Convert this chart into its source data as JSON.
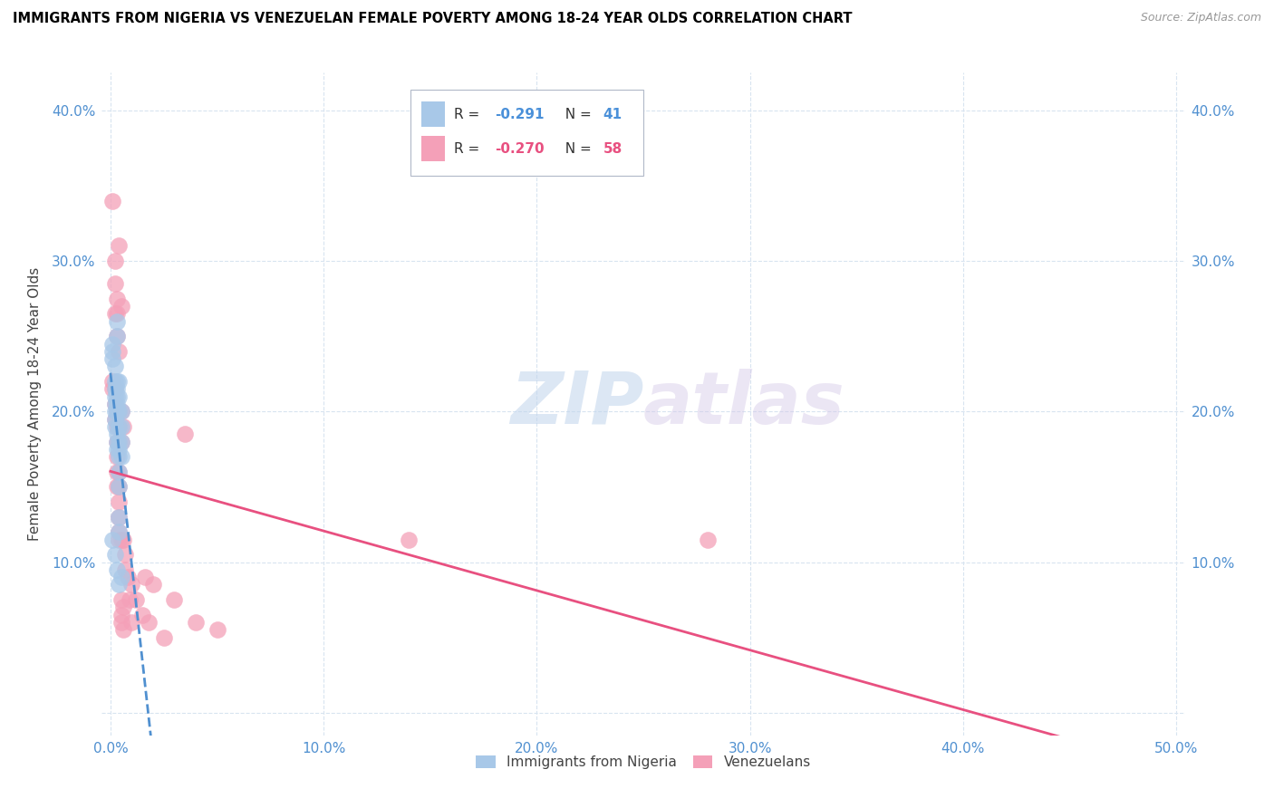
{
  "title": "IMMIGRANTS FROM NIGERIA VS VENEZUELAN FEMALE POVERTY AMONG 18-24 YEAR OLDS CORRELATION CHART",
  "source": "Source: ZipAtlas.com",
  "ylabel": "Female Poverty Among 18-24 Year Olds",
  "xlim": [
    0.0,
    0.5
  ],
  "ylim": [
    0.0,
    0.42
  ],
  "xticks": [
    0.0,
    0.1,
    0.2,
    0.3,
    0.4,
    0.5
  ],
  "xtick_labels": [
    "0.0%",
    "10.0%",
    "20.0%",
    "30.0%",
    "40.0%",
    "50.0%"
  ],
  "yticks": [
    0.0,
    0.1,
    0.2,
    0.3,
    0.4
  ],
  "ytick_labels": [
    "",
    "10.0%",
    "20.0%",
    "30.0%",
    "40.0%"
  ],
  "watermark": "ZIPatlas",
  "nigeria_color": "#a8c8e8",
  "venezuela_color": "#f4a0b8",
  "nigeria_line_color": "#5090d0",
  "venezuela_line_color": "#e85080",
  "nigeria_scatter": [
    [
      0.001,
      0.24
    ],
    [
      0.001,
      0.245
    ],
    [
      0.001,
      0.235
    ],
    [
      0.002,
      0.23
    ],
    [
      0.002,
      0.22
    ],
    [
      0.002,
      0.215
    ],
    [
      0.002,
      0.21
    ],
    [
      0.002,
      0.205
    ],
    [
      0.002,
      0.2
    ],
    [
      0.002,
      0.195
    ],
    [
      0.002,
      0.19
    ],
    [
      0.003,
      0.26
    ],
    [
      0.003,
      0.25
    ],
    [
      0.003,
      0.22
    ],
    [
      0.003,
      0.215
    ],
    [
      0.003,
      0.21
    ],
    [
      0.003,
      0.205
    ],
    [
      0.003,
      0.2
    ],
    [
      0.003,
      0.185
    ],
    [
      0.003,
      0.18
    ],
    [
      0.003,
      0.175
    ],
    [
      0.004,
      0.22
    ],
    [
      0.004,
      0.21
    ],
    [
      0.004,
      0.2
    ],
    [
      0.004,
      0.19
    ],
    [
      0.004,
      0.18
    ],
    [
      0.004,
      0.175
    ],
    [
      0.004,
      0.17
    ],
    [
      0.004,
      0.16
    ],
    [
      0.004,
      0.15
    ],
    [
      0.004,
      0.13
    ],
    [
      0.004,
      0.12
    ],
    [
      0.005,
      0.2
    ],
    [
      0.005,
      0.19
    ],
    [
      0.005,
      0.18
    ],
    [
      0.005,
      0.17
    ],
    [
      0.001,
      0.115
    ],
    [
      0.002,
      0.105
    ],
    [
      0.003,
      0.095
    ],
    [
      0.004,
      0.085
    ],
    [
      0.005,
      0.09
    ]
  ],
  "venezuela_scatter": [
    [
      0.001,
      0.22
    ],
    [
      0.001,
      0.215
    ],
    [
      0.001,
      0.34
    ],
    [
      0.002,
      0.3
    ],
    [
      0.002,
      0.285
    ],
    [
      0.002,
      0.265
    ],
    [
      0.002,
      0.215
    ],
    [
      0.002,
      0.205
    ],
    [
      0.002,
      0.195
    ],
    [
      0.003,
      0.275
    ],
    [
      0.003,
      0.265
    ],
    [
      0.003,
      0.25
    ],
    [
      0.003,
      0.2
    ],
    [
      0.003,
      0.19
    ],
    [
      0.003,
      0.18
    ],
    [
      0.003,
      0.17
    ],
    [
      0.003,
      0.16
    ],
    [
      0.003,
      0.15
    ],
    [
      0.004,
      0.31
    ],
    [
      0.004,
      0.24
    ],
    [
      0.004,
      0.2
    ],
    [
      0.004,
      0.19
    ],
    [
      0.004,
      0.18
    ],
    [
      0.004,
      0.16
    ],
    [
      0.004,
      0.15
    ],
    [
      0.004,
      0.14
    ],
    [
      0.004,
      0.13
    ],
    [
      0.004,
      0.12
    ],
    [
      0.004,
      0.115
    ],
    [
      0.005,
      0.27
    ],
    [
      0.005,
      0.2
    ],
    [
      0.005,
      0.18
    ],
    [
      0.005,
      0.115
    ],
    [
      0.005,
      0.075
    ],
    [
      0.005,
      0.065
    ],
    [
      0.005,
      0.06
    ],
    [
      0.006,
      0.19
    ],
    [
      0.006,
      0.115
    ],
    [
      0.006,
      0.07
    ],
    [
      0.006,
      0.055
    ],
    [
      0.007,
      0.105
    ],
    [
      0.007,
      0.095
    ],
    [
      0.008,
      0.09
    ],
    [
      0.009,
      0.075
    ],
    [
      0.01,
      0.085
    ],
    [
      0.01,
      0.06
    ],
    [
      0.012,
      0.075
    ],
    [
      0.015,
      0.065
    ],
    [
      0.016,
      0.09
    ],
    [
      0.018,
      0.06
    ],
    [
      0.02,
      0.085
    ],
    [
      0.025,
      0.05
    ],
    [
      0.03,
      0.075
    ],
    [
      0.04,
      0.06
    ],
    [
      0.05,
      0.055
    ],
    [
      0.14,
      0.115
    ],
    [
      0.28,
      0.115
    ],
    [
      0.035,
      0.185
    ]
  ]
}
